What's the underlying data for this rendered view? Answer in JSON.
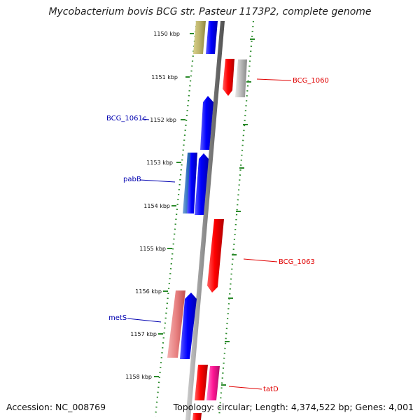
{
  "title": "Mycobacterium bovis BCG str. Pasteur 1173P2, complete genome",
  "accession": "Accession: NC_008769",
  "summary": "Topology: circular; Length: 4,374,522 bp; Genes: 4,001",
  "kbp_labels": [
    "1150 kbp",
    "1151 kbp",
    "1152 kbp",
    "1153 kbp",
    "1154 kbp",
    "1155 kbp",
    "1156 kbp",
    "1157 kbp",
    "1158 kbp"
  ],
  "gene_labels": [
    {
      "name": "BCG_1060",
      "color": "#e00000"
    },
    {
      "name": "BCG_1061c",
      "color": "#0000b0"
    },
    {
      "name": "pabB",
      "color": "#0000b0"
    },
    {
      "name": "BCG_1063",
      "color": "#e00000"
    },
    {
      "name": "metS",
      "color": "#0000b0"
    },
    {
      "name": "tatD",
      "color": "#e00000"
    }
  ],
  "colors": {
    "forward": "#ff0000",
    "reverse": "#0000ff",
    "tick": "#2a8a2a",
    "backbone": "#888888"
  }
}
